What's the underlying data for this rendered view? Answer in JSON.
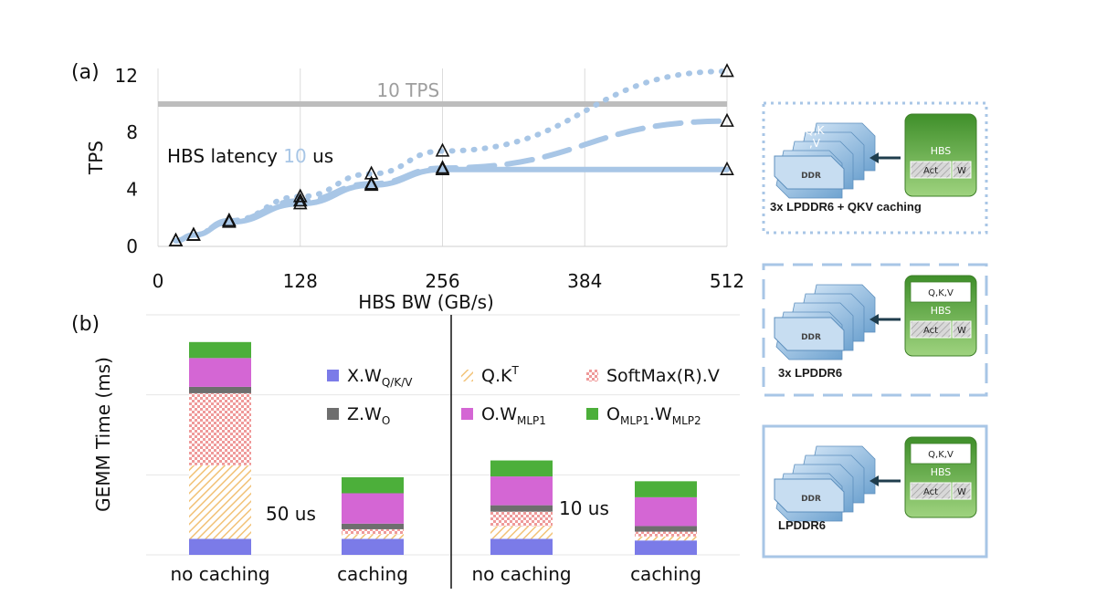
{
  "panel_a": {
    "label": "(a)",
    "annotation_line": "10 TPS",
    "latency_text": "HBS latency",
    "latency_value": "10",
    "latency_unit": "us"
  },
  "panel_b": {
    "label": "(b)",
    "group_notes": [
      "50 us",
      "10 us"
    ]
  },
  "colors": {
    "line": "#a8c6e6",
    "ref_line": "#bdbdbd",
    "x_w_qkv": "#7b7be8",
    "z_wo": "#6e6e6e",
    "qk_t": "#f2c277",
    "o_w_mlp1": "#d466d4",
    "softmax": "#ef9a9a",
    "o_mlp1_w_mlp2": "#4caf3a",
    "hbs_green": "#5aaa3c",
    "ddr_blue": "#9cc3e8"
  },
  "chart_data": [
    {
      "type": "line",
      "xlabel": "HBS BW (GB/s)",
      "ylabel": "TPS",
      "xlim": [
        0,
        512
      ],
      "ylim": [
        0,
        12.5
      ],
      "x_ticks": [
        "0",
        "128",
        "256",
        "384",
        "512"
      ],
      "y_ticks": [
        "0",
        "4",
        "8",
        "12"
      ],
      "grid": "vertical",
      "reference_line": {
        "y": 10,
        "label": "10 TPS"
      },
      "series": [
        {
          "style": "dotted",
          "x": [
            16,
            32,
            64,
            128,
            192,
            256,
            512
          ],
          "y": [
            0.4,
            0.8,
            1.8,
            3.5,
            5.1,
            6.7,
            12.3
          ]
        },
        {
          "style": "dashed",
          "x": [
            16,
            32,
            64,
            128,
            192,
            256,
            512
          ],
          "y": [
            0.4,
            0.8,
            1.8,
            3.2,
            4.4,
            5.5,
            8.8
          ]
        },
        {
          "style": "solid",
          "x": [
            16,
            32,
            64,
            128,
            192,
            256,
            512
          ],
          "y": [
            0.4,
            0.8,
            1.7,
            3.0,
            4.3,
            5.4,
            5.4
          ]
        }
      ]
    },
    {
      "type": "bar",
      "ylabel": "GEMM Time (ms)",
      "categories": [
        "no caching",
        "caching",
        "no caching",
        "caching"
      ],
      "legend": [
        {
          "key": "x_w_qkv",
          "base": "X.W",
          "sub": "Q/K/V"
        },
        {
          "key": "qk_t",
          "base": "Q.K",
          "sup": "T"
        },
        {
          "key": "softmax",
          "base": "SoftMax(R).V"
        },
        {
          "key": "z_wo",
          "base": "Z.W",
          "sub": "O"
        },
        {
          "key": "o_w_mlp1",
          "base": "O.W",
          "sub": "MLP1"
        },
        {
          "key": "o_mlp1_w_mlp2",
          "base": "O",
          "sub": "MLP1",
          "base2": ".W",
          "sub2": "MLP2"
        }
      ],
      "stack_order": [
        "x_w_qkv",
        "qk_t",
        "softmax",
        "z_wo",
        "o_w_mlp1",
        "o_mlp1_w_mlp2"
      ],
      "values": [
        [
          1.0,
          4.6,
          4.5,
          0.4,
          1.8,
          1.0
        ],
        [
          1.0,
          0.3,
          0.3,
          0.35,
          1.9,
          1.0
        ],
        [
          1.0,
          0.8,
          0.9,
          0.4,
          1.8,
          1.0
        ],
        [
          0.9,
          0.25,
          0.3,
          0.35,
          1.8,
          1.0
        ]
      ],
      "ylim": [
        0,
        15
      ]
    }
  ],
  "architectures": [
    {
      "caption": "3x LPDDR6 + QKV caching",
      "ddr_text": "DDR",
      "ddr_overlay": "Q,K\n,V",
      "hbs": "HBS",
      "act": "Act",
      "w": "W",
      "qkv_box": ""
    },
    {
      "caption": "3x LPDDR6",
      "ddr_text": "DDR",
      "ddr_overlay": "",
      "hbs": "HBS",
      "act": "Act",
      "w": "W",
      "qkv_box": "Q,K,V"
    },
    {
      "caption": "LPDDR6",
      "ddr_text": "DDR",
      "ddr_overlay": "",
      "hbs": "HBS",
      "act": "Act",
      "w": "W",
      "qkv_box": "Q,K,V"
    }
  ]
}
